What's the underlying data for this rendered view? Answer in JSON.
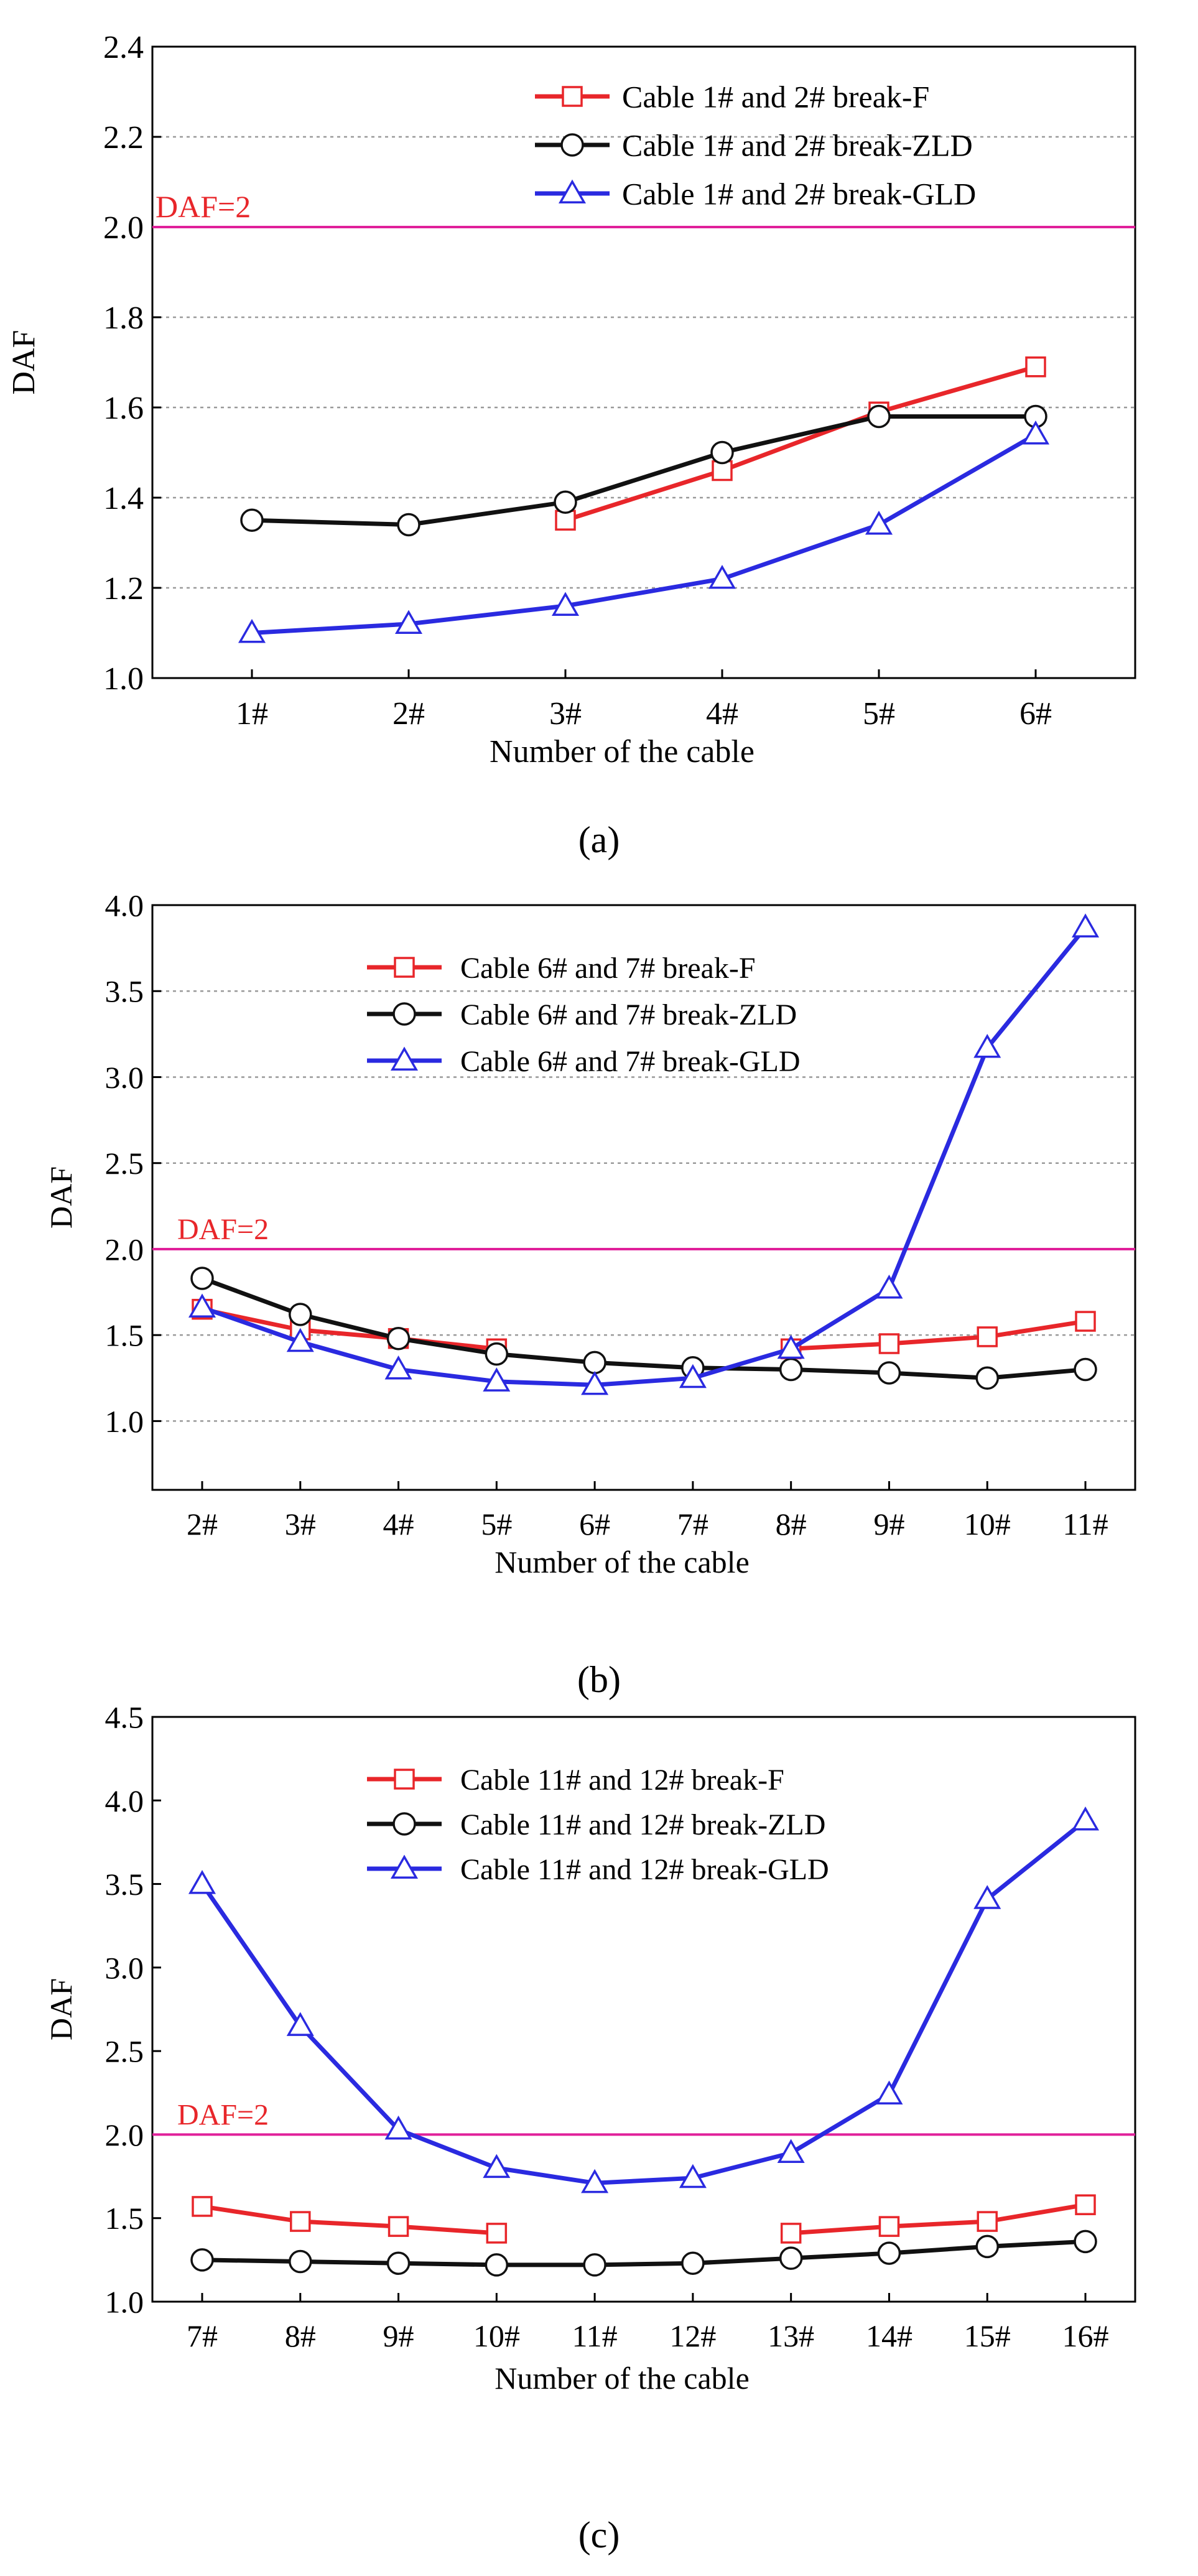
{
  "colors": {
    "F": "#e8262a",
    "ZLD": "#111111",
    "GLD": "#2a2ae0",
    "threshold": "#e0209a",
    "threshold_label": "#e8262a",
    "grid": "#9a9a9a"
  },
  "chart_data": [
    {
      "type": "line",
      "caption": "(a)",
      "xlabel": "Number of the cable",
      "ylabel": "DAF",
      "categories": [
        "1#",
        "2#",
        "3#",
        "4#",
        "5#",
        "6#"
      ],
      "ylim": [
        1.0,
        2.4
      ],
      "yticks": [
        1.0,
        1.2,
        1.4,
        1.6,
        1.8,
        2.0,
        2.2,
        2.4
      ],
      "ytick_labels": [
        "1.0",
        "1.2",
        "1.4",
        "1.6",
        "1.8",
        "2.0",
        "2.2",
        "2.4"
      ],
      "grid": true,
      "legend_position": "top-right",
      "threshold": {
        "value": 2.0,
        "label": "DAF=2"
      },
      "series": [
        {
          "key": "F",
          "name": "Cable 1# and 2# break-F",
          "marker": "square",
          "values": [
            null,
            null,
            1.35,
            1.46,
            1.59,
            1.69
          ]
        },
        {
          "key": "ZLD",
          "name": "Cable 1# and 2# break-ZLD",
          "marker": "circle",
          "values": [
            1.35,
            1.34,
            1.39,
            1.5,
            1.58,
            1.58
          ]
        },
        {
          "key": "GLD",
          "name": "Cable 1# and 2# break-GLD",
          "marker": "triangle",
          "values": [
            1.1,
            1.12,
            1.16,
            1.22,
            1.34,
            1.54
          ]
        }
      ]
    },
    {
      "type": "line",
      "caption": "(b)",
      "xlabel": "Number of the cable",
      "ylabel": "DAF",
      "categories": [
        "2#",
        "3#",
        "4#",
        "5#",
        "6#",
        "7#",
        "8#",
        "9#",
        "10#",
        "11#"
      ],
      "ylim": [
        0.6,
        4.0
      ],
      "yticks": [
        1.0,
        1.5,
        2.0,
        2.5,
        3.0,
        3.5,
        4.0
      ],
      "ytick_labels": [
        "1.0",
        "1.5",
        "2.0",
        "2.5",
        "3.0",
        "3.5",
        "4.0"
      ],
      "grid": true,
      "legend_position": "top-center",
      "threshold": {
        "value": 2.0,
        "label": "DAF=2"
      },
      "series": [
        {
          "key": "F",
          "name": "Cable 6# and 7# break-F",
          "marker": "square",
          "values": [
            1.65,
            1.53,
            1.48,
            1.42,
            null,
            null,
            1.42,
            1.45,
            1.49,
            1.58
          ]
        },
        {
          "key": "ZLD",
          "name": "Cable 6# and 7# break-ZLD",
          "marker": "circle",
          "values": [
            1.83,
            1.62,
            1.48,
            1.39,
            1.34,
            1.31,
            1.3,
            1.28,
            1.25,
            1.3
          ]
        },
        {
          "key": "GLD",
          "name": "Cable 6# and 7# break-GLD",
          "marker": "triangle",
          "values": [
            1.66,
            1.46,
            1.3,
            1.23,
            1.21,
            1.25,
            1.42,
            1.77,
            3.17,
            3.87
          ]
        }
      ]
    },
    {
      "type": "line",
      "caption": "(c)",
      "xlabel": "Number of the cable",
      "ylabel": "DAF",
      "categories": [
        "7#",
        "8#",
        "9#",
        "10#",
        "11#",
        "12#",
        "13#",
        "14#",
        "15#",
        "16#"
      ],
      "ylim": [
        1.0,
        4.5
      ],
      "yticks": [
        1.0,
        1.5,
        2.0,
        2.5,
        3.0,
        3.5,
        4.0,
        4.5
      ],
      "ytick_labels": [
        "1.0",
        "1.5",
        "2.0",
        "2.5",
        "3.0",
        "3.5",
        "4.0",
        "4.5"
      ],
      "grid": false,
      "legend_position": "top-center",
      "threshold": {
        "value": 2.0,
        "label": "DAF=2"
      },
      "series": [
        {
          "key": "F",
          "name": "Cable 11# and 12# break-F",
          "marker": "square",
          "values": [
            1.57,
            1.48,
            1.45,
            1.41,
            null,
            null,
            1.41,
            1.45,
            1.48,
            1.58
          ]
        },
        {
          "key": "ZLD",
          "name": "Cable 11# and 12# break-ZLD",
          "marker": "circle",
          "values": [
            1.25,
            1.24,
            1.23,
            1.22,
            1.22,
            1.23,
            1.26,
            1.29,
            1.33,
            1.36
          ]
        },
        {
          "key": "GLD",
          "name": "Cable 11# and 12# break-GLD",
          "marker": "triangle",
          "values": [
            3.5,
            2.65,
            2.03,
            1.8,
            1.71,
            1.74,
            1.89,
            2.24,
            3.41,
            3.88
          ]
        }
      ]
    }
  ]
}
